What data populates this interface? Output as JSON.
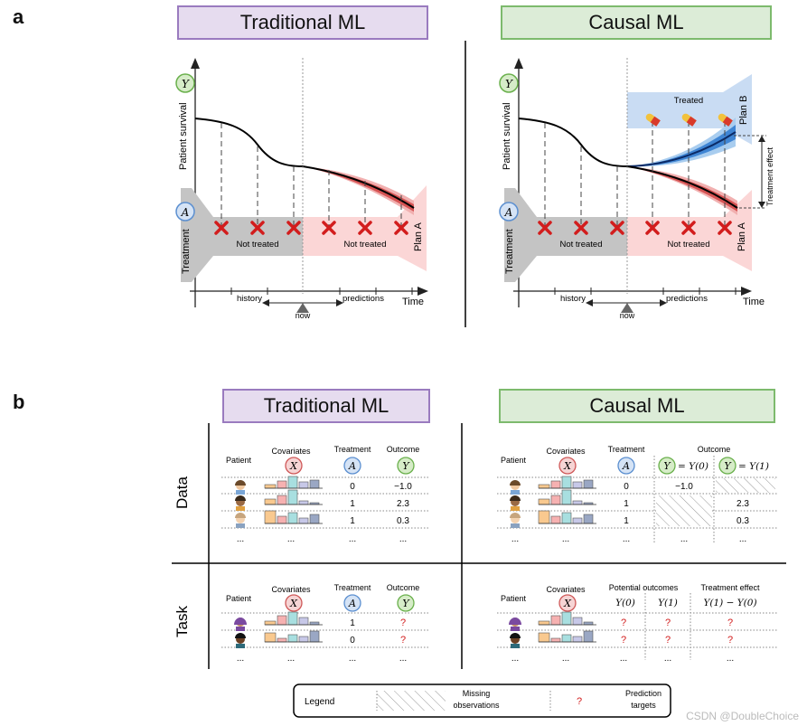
{
  "panel_a": {
    "letter": "a",
    "left": {
      "title": "Traditional ML",
      "y_axis": "Patient survival",
      "y_symbol": "Y",
      "a_symbol": "A",
      "treatment_label": "Treatment",
      "not_treated_1": "Not treated",
      "not_treated_2": "Not treated",
      "plan_a": "Plan A",
      "history": "history",
      "predictions": "predictions",
      "time": "Time",
      "now": "now"
    },
    "right": {
      "title": "Causal ML",
      "y_axis": "Patient survival",
      "y_symbol": "Y",
      "a_symbol": "A",
      "treatment_label": "Treatment",
      "treated": "Treated",
      "plan_b": "Plan B",
      "treatment_effect": "Treatment effect",
      "not_treated_1": "Not treated",
      "not_treated_2": "Not treated",
      "plan_a": "Plan A",
      "history": "history",
      "predictions": "predictions",
      "time": "Time",
      "now": "now"
    }
  },
  "panel_b": {
    "letter": "b",
    "row_data": "Data",
    "row_task": "Task",
    "left_title": "Traditional ML",
    "right_title": "Causal ML",
    "headers": {
      "patient": "Patient",
      "covariates": "Covariates",
      "treatment": "Treatment",
      "outcome": "Outcome",
      "potential_outcomes": "Potential outcomes",
      "treatment_effect": "Treatment effect"
    },
    "symbols": {
      "x": "X",
      "a": "A",
      "y": "Y"
    },
    "causal_outcome_cols": [
      "= Y(0)",
      "= Y(1)"
    ],
    "potential_cols": [
      "Y(0)",
      "Y(1)",
      "Y(1) − Y(0)"
    ],
    "trad_data": {
      "treatment": [
        "0",
        "1",
        "1"
      ],
      "outcome": [
        "−1.0",
        "2.3",
        "0.3"
      ]
    },
    "causal_data": {
      "treatment": [
        "0",
        "1",
        "1"
      ],
      "y0": [
        "−1.0",
        "",
        ""
      ],
      "y1": [
        "",
        "2.3",
        "0.3"
      ]
    },
    "trad_task": {
      "treatment": [
        "1",
        "0"
      ],
      "outcome": [
        "?",
        "?"
      ]
    },
    "causal_task": {
      "y0": [
        "?",
        "?"
      ],
      "y1": [
        "?",
        "?"
      ],
      "effect": [
        "?",
        "?"
      ]
    },
    "ellipsis": "...",
    "legend": {
      "label": "Legend",
      "missing": "Missing observations",
      "missing_1": "Missing",
      "missing_2": "observations",
      "q": "?",
      "pred_1": "Prediction",
      "pred_2": "targets"
    }
  },
  "watermark": "CSDN @DoubleChoice"
}
